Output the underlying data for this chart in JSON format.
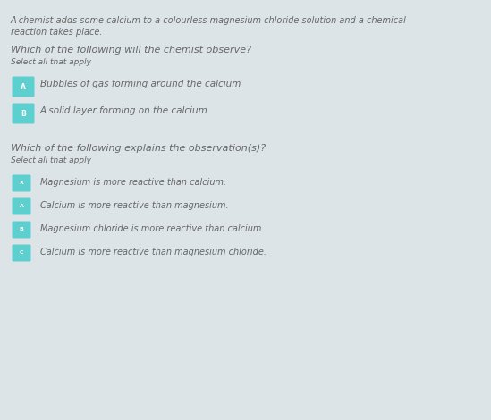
{
  "background_color": "#dde4e8",
  "intro_text_line1": "A chemist adds some calcium to a colourless magnesium chloride solution and a chemical",
  "intro_text_line2": "reaction takes place.",
  "q1_text": "Which of the following will the chemist observe?",
  "q1_sub": "Select all that apply",
  "q1_options": [
    {
      "label": "A",
      "text": "Bubbles of gas forming around the calcium",
      "color": "#5ecfcf"
    },
    {
      "label": "B",
      "text": "A solid layer forming on the calcium",
      "color": "#5ecfcf"
    }
  ],
  "q2_text": "Which of the following explains the observation(s)?",
  "q2_sub": "Select all that apply",
  "q2_options": [
    {
      "label": "X",
      "text": "Magnesium is more reactive than calcium.",
      "color": "#5ecfcf"
    },
    {
      "label": "A",
      "text": "Calcium is more reactive than magnesium.",
      "color": "#5ecfcf"
    },
    {
      "label": "B",
      "text": "Magnesium chloride is more reactive than calcium.",
      "color": "#5ecfcf"
    },
    {
      "label": "C",
      "text": "Calcium is more reactive than magnesium chloride.",
      "color": "#5ecfcf"
    }
  ],
  "intro_fontsize": 7.0,
  "q_fontsize": 8.0,
  "sub_fontsize": 6.5,
  "opt_fontsize": 7.5,
  "text_color": "#666666",
  "fig_width": 5.49,
  "fig_height": 4.7,
  "dpi": 100
}
